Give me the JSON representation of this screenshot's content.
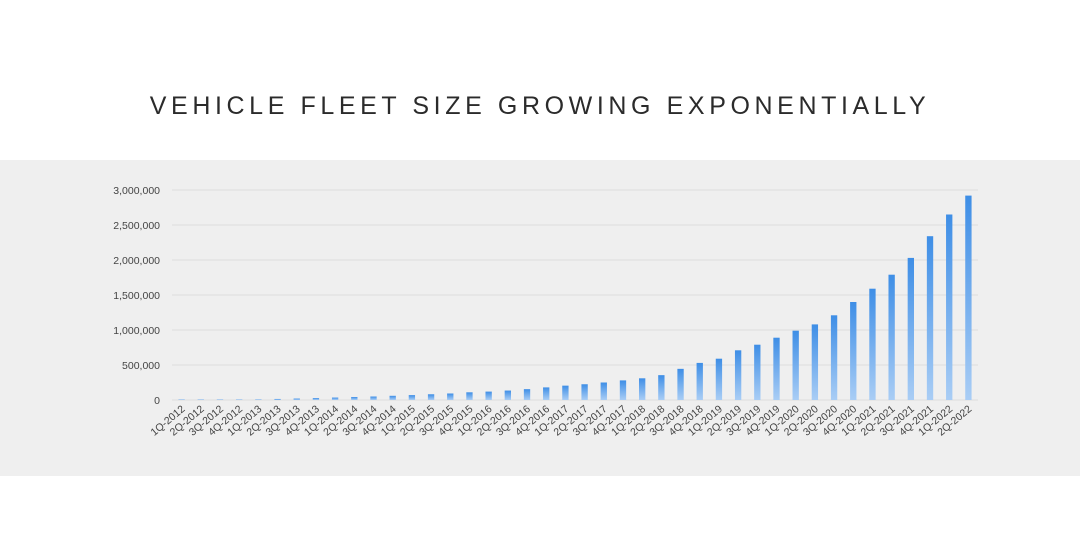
{
  "title": "VEHICLE FLEET SIZE GROWING EXPONENTIALLY",
  "colors": {
    "background": "#ffffff",
    "panel": "#efefef",
    "bar_top": "#3e8ee6",
    "bar_bottom": "#a9cdf5",
    "grid": "#dcdcdc",
    "text": "#2b2b2b"
  },
  "chart_data": {
    "type": "bar",
    "title": "VEHICLE FLEET SIZE GROWING EXPONENTIALLY",
    "xlabel": "",
    "ylabel": "",
    "ylim": [
      0,
      3000000
    ],
    "grid": true,
    "legend": "none",
    "y_ticks": [
      0,
      500000,
      1000000,
      1500000,
      2000000,
      2500000,
      3000000
    ],
    "y_tick_labels": [
      "0",
      "500,000",
      "1,000,000",
      "1,500,000",
      "2,000,000",
      "2,500,000",
      "3,000,000"
    ],
    "categories": [
      "1Q-2012",
      "2Q-2012",
      "3Q-2012",
      "4Q-2012",
      "1Q-2013",
      "2Q-2013",
      "3Q-2013",
      "4Q-2013",
      "1Q-2014",
      "2Q-2014",
      "3Q-2014",
      "4Q-2014",
      "1Q-2015",
      "2Q-2015",
      "3Q-2015",
      "4Q-2015",
      "1Q-2016",
      "2Q-2016",
      "3Q-2016",
      "4Q-2016",
      "1Q-2017",
      "2Q-2017",
      "3Q-2017",
      "4Q-2017",
      "1Q-2018",
      "2Q-2018",
      "3Q-2018",
      "4Q-2018",
      "1Q-2019",
      "2Q-2019",
      "3Q-2019",
      "4Q-2019",
      "1Q-2020",
      "2Q-2020",
      "3Q-2020",
      "4Q-2020",
      "1Q-2021",
      "2Q-2021",
      "3Q-2021",
      "4Q-2021",
      "1Q-2022",
      "2Q-2022"
    ],
    "values": [
      2500,
      2700,
      3000,
      5000,
      8000,
      15000,
      21000,
      28000,
      35000,
      43000,
      50000,
      60000,
      70000,
      82000,
      93000,
      110000,
      120000,
      135000,
      155000,
      180000,
      205000,
      225000,
      250000,
      280000,
      310000,
      355000,
      445000,
      530000,
      590000,
      710000,
      790000,
      890000,
      990000,
      1080000,
      1210000,
      1400000,
      1590000,
      1790000,
      2030000,
      2340000,
      2650000,
      2920000
    ]
  }
}
